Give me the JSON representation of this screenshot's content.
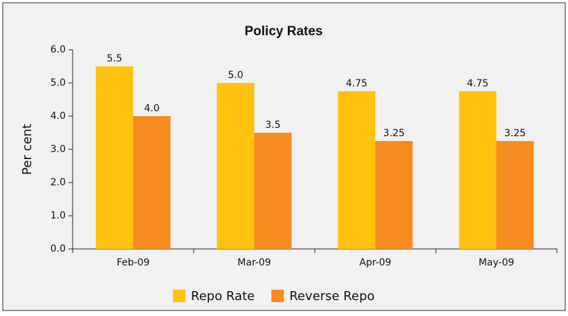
{
  "chart_data": {
    "type": "bar",
    "title": "Policy Rates",
    "y_label": "Per cent",
    "categories": [
      "Feb-09",
      "Mar-09",
      "Apr-09",
      "May-09"
    ],
    "series": [
      {
        "name": "Repo Rate",
        "color": "#ffc20e",
        "values": [
          5.5,
          5.0,
          4.75,
          4.75
        ],
        "value_labels": [
          "5.5",
          "5.0",
          "4.75",
          "4.75"
        ]
      },
      {
        "name": "Reverse Repo",
        "color": "#f68b1f",
        "values": [
          4.0,
          3.5,
          3.25,
          3.25
        ],
        "value_labels": [
          "4.0",
          "3.5",
          "3.25",
          "3.25"
        ]
      }
    ],
    "ylim": [
      0,
      6
    ],
    "yticks": [
      {
        "value": 0,
        "label": "0.0"
      },
      {
        "value": 1,
        "label": "1.0"
      },
      {
        "value": 2,
        "label": "2.0"
      },
      {
        "value": 3,
        "label": "3.0"
      },
      {
        "value": 4,
        "label": "4.0"
      },
      {
        "value": 5,
        "label": "5.0"
      },
      {
        "value": 6,
        "label": "6.0"
      }
    ],
    "legend": "bottom"
  }
}
